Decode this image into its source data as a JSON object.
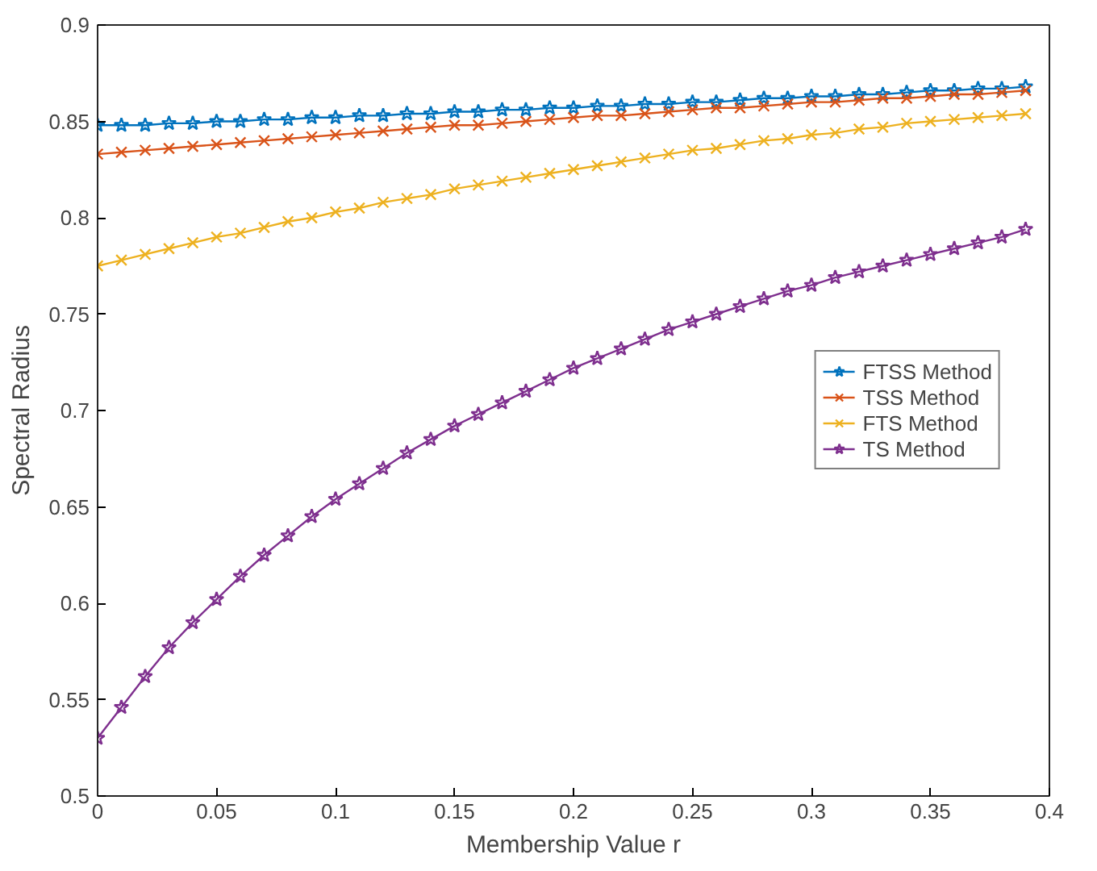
{
  "chart_data": {
    "type": "line",
    "xlabel": "Membership Value r",
    "ylabel": "Spectral Radius",
    "x": [
      0,
      0.01,
      0.02,
      0.03,
      0.04,
      0.05,
      0.06,
      0.07,
      0.08,
      0.09,
      0.1,
      0.11,
      0.12,
      0.13,
      0.14,
      0.15,
      0.16,
      0.17,
      0.18,
      0.19,
      0.2,
      0.21,
      0.22,
      0.23,
      0.24,
      0.25,
      0.26,
      0.27,
      0.28,
      0.29,
      0.3,
      0.31,
      0.32,
      0.33,
      0.34,
      0.35,
      0.36,
      0.37,
      0.38,
      0.39
    ],
    "series": [
      {
        "name": "FTSS Method",
        "color": "#0072bd",
        "marker": "star",
        "values": [
          0.848,
          0.848,
          0.848,
          0.849,
          0.849,
          0.85,
          0.85,
          0.851,
          0.851,
          0.852,
          0.852,
          0.853,
          0.853,
          0.854,
          0.854,
          0.855,
          0.855,
          0.856,
          0.856,
          0.857,
          0.857,
          0.858,
          0.858,
          0.859,
          0.859,
          0.86,
          0.86,
          0.861,
          0.862,
          0.862,
          0.863,
          0.863,
          0.864,
          0.864,
          0.865,
          0.866,
          0.866,
          0.867,
          0.867,
          0.868
        ]
      },
      {
        "name": "TSS Method",
        "color": "#d95319",
        "marker": "cross",
        "values": [
          0.833,
          0.834,
          0.835,
          0.836,
          0.837,
          0.838,
          0.839,
          0.84,
          0.841,
          0.842,
          0.843,
          0.844,
          0.845,
          0.846,
          0.847,
          0.848,
          0.848,
          0.849,
          0.85,
          0.851,
          0.852,
          0.853,
          0.853,
          0.854,
          0.855,
          0.856,
          0.857,
          0.857,
          0.858,
          0.859,
          0.86,
          0.86,
          0.861,
          0.862,
          0.862,
          0.863,
          0.864,
          0.864,
          0.865,
          0.866
        ]
      },
      {
        "name": "FTS Method",
        "color": "#edb120",
        "marker": "cross",
        "values": [
          0.775,
          0.778,
          0.781,
          0.784,
          0.787,
          0.79,
          0.792,
          0.795,
          0.798,
          0.8,
          0.803,
          0.805,
          0.808,
          0.81,
          0.812,
          0.815,
          0.817,
          0.819,
          0.821,
          0.823,
          0.825,
          0.827,
          0.829,
          0.831,
          0.833,
          0.835,
          0.836,
          0.838,
          0.84,
          0.841,
          0.843,
          0.844,
          0.846,
          0.847,
          0.849,
          0.85,
          0.851,
          0.852,
          0.853,
          0.854
        ]
      },
      {
        "name": "TS Method",
        "color": "#7e2f8e",
        "marker": "star",
        "values": [
          0.53,
          0.546,
          0.562,
          0.577,
          0.59,
          0.602,
          0.614,
          0.625,
          0.635,
          0.645,
          0.654,
          0.662,
          0.67,
          0.678,
          0.685,
          0.692,
          0.698,
          0.704,
          0.71,
          0.716,
          0.722,
          0.727,
          0.732,
          0.737,
          0.742,
          0.746,
          0.75,
          0.754,
          0.758,
          0.762,
          0.765,
          0.769,
          0.772,
          0.775,
          0.778,
          0.781,
          0.784,
          0.787,
          0.79,
          0.794
        ]
      }
    ],
    "xlim": [
      0,
      0.4
    ],
    "xticks": [
      0,
      0.05,
      0.1,
      0.15,
      0.2,
      0.25,
      0.3,
      0.35,
      0.4
    ],
    "ylim": [
      0.5,
      0.9
    ],
    "yticks": [
      0.5,
      0.55,
      0.6,
      0.65,
      0.7,
      0.75,
      0.8,
      0.85,
      0.9
    ],
    "legend": "right",
    "line_style": "solid"
  }
}
